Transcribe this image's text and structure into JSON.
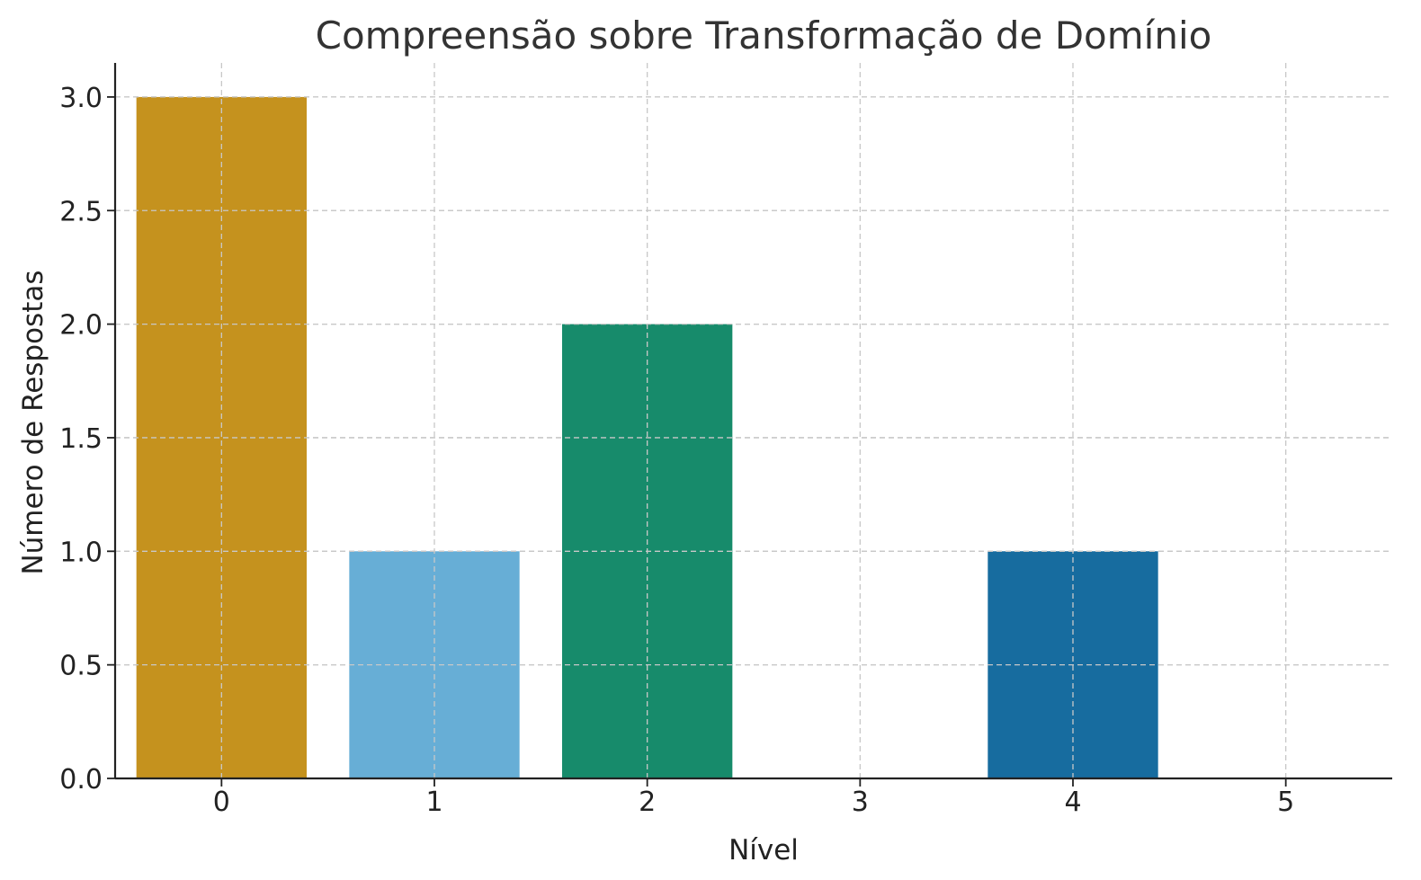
{
  "chart_data": {
    "type": "bar",
    "title": "Compreensão sobre Transformação de Domínio",
    "xlabel": "Nível",
    "ylabel": "Número de Respostas",
    "categories": [
      "0",
      "1",
      "2",
      "3",
      "4",
      "5"
    ],
    "values": [
      3,
      1,
      2,
      0,
      1,
      0
    ],
    "colors": [
      "#C5921E",
      "#67AED6",
      "#178B6B",
      "#E3BA3C",
      "#176C9F",
      "#D36B2A"
    ],
    "yticks": [
      "0.0",
      "0.5",
      "1.0",
      "1.5",
      "2.0",
      "2.5",
      "3.0"
    ],
    "ylim": [
      0,
      3.15
    ],
    "xlim": [
      -0.5,
      5.5
    ],
    "grid": true
  }
}
